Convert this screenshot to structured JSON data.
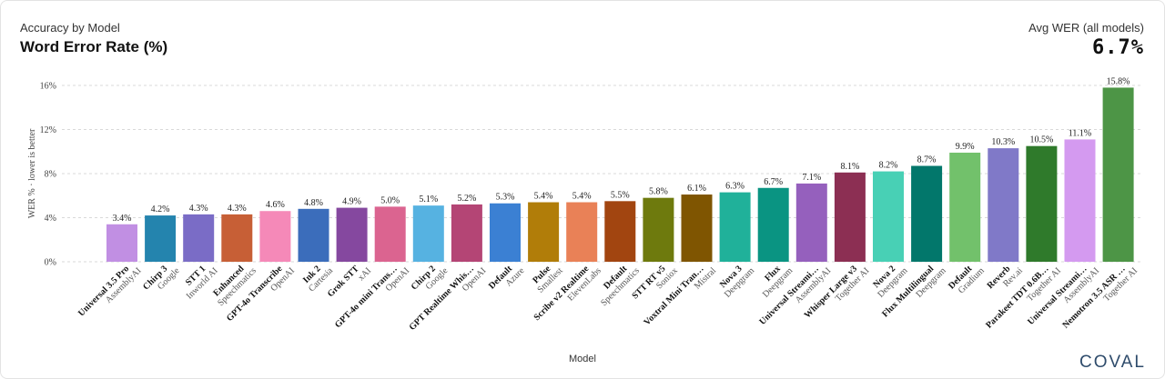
{
  "header": {
    "subtitle": "Accuracy by Model",
    "title": "Word Error Rate (%)",
    "avg_label": "Avg WER (all models)",
    "avg_value": "6.7%"
  },
  "brand": "COVAL",
  "chart_data": {
    "type": "bar",
    "title": "Word Error Rate (%)",
    "xlabel": "Model",
    "ylabel": "WER % · lower is better",
    "ylim": [
      0,
      16
    ],
    "yticks": [
      "0%",
      "4%",
      "8%",
      "12%",
      "16%"
    ],
    "grid": true,
    "bars": [
      {
        "model": "Universal 3.5 Pro",
        "provider": "AssemblyAI",
        "value": 3.4,
        "label": "3.4%",
        "color": "#c18fe3"
      },
      {
        "model": "Chirp 3",
        "provider": "Google",
        "value": 4.2,
        "label": "4.2%",
        "color": "#2484ae"
      },
      {
        "model": "STT 1",
        "provider": "Inworld AI",
        "value": 4.3,
        "label": "4.3%",
        "color": "#7a6cc6"
      },
      {
        "model": "Enhanced",
        "provider": "Speechmatics",
        "value": 4.3,
        "label": "4.3%",
        "color": "#c75f36"
      },
      {
        "model": "GPT-4o Transcribe",
        "provider": "OpenAI",
        "value": 4.6,
        "label": "4.6%",
        "color": "#f589b8"
      },
      {
        "model": "Ink 2",
        "provider": "Cartesia",
        "value": 4.8,
        "label": "4.8%",
        "color": "#3b6dbb"
      },
      {
        "model": "Grok STT",
        "provider": "xAI",
        "value": 4.9,
        "label": "4.9%",
        "color": "#85489f"
      },
      {
        "model": "GPT-4o mini Trans…",
        "provider": "OpenAI",
        "value": 5.0,
        "label": "5.0%",
        "color": "#db6490"
      },
      {
        "model": "Chirp 2",
        "provider": "Google",
        "value": 5.1,
        "label": "5.1%",
        "color": "#56b2e1"
      },
      {
        "model": "GPT Realtime Whis…",
        "provider": "OpenAI",
        "value": 5.2,
        "label": "5.2%",
        "color": "#b44575"
      },
      {
        "model": "Default",
        "provider": "Azure",
        "value": 5.3,
        "label": "5.3%",
        "color": "#3b80d3"
      },
      {
        "model": "Pulse",
        "provider": "Smallest",
        "value": 5.4,
        "label": "5.4%",
        "color": "#b17d09"
      },
      {
        "model": "Scribe v2 Realtime",
        "provider": "ElevenLabs",
        "value": 5.4,
        "label": "5.4%",
        "color": "#e98157"
      },
      {
        "model": "Default",
        "provider": "Speechmatics",
        "value": 5.5,
        "label": "5.5%",
        "color": "#a24510"
      },
      {
        "model": "STT RT v5",
        "provider": "Soniox",
        "value": 5.8,
        "label": "5.8%",
        "color": "#6e7a0d"
      },
      {
        "model": "Voxtral Mini Tran…",
        "provider": "Mistral",
        "value": 6.1,
        "label": "6.1%",
        "color": "#7f5501"
      },
      {
        "model": "Nova 3",
        "provider": "Deepgram",
        "value": 6.3,
        "label": "6.3%",
        "color": "#20b19a"
      },
      {
        "model": "Flux",
        "provider": "Deepgram",
        "value": 6.7,
        "label": "6.7%",
        "color": "#0a9482"
      },
      {
        "model": "Universal Streami…",
        "provider": "AssemblyAI",
        "value": 7.1,
        "label": "7.1%",
        "color": "#9560bd"
      },
      {
        "model": "Whisper Large v3",
        "provider": "Together AI",
        "value": 8.1,
        "label": "8.1%",
        "color": "#8c2f53"
      },
      {
        "model": "Nova 2",
        "provider": "Deepgram",
        "value": 8.2,
        "label": "8.2%",
        "color": "#48d0b5"
      },
      {
        "model": "Flux Multilingual",
        "provider": "Deepgram",
        "value": 8.7,
        "label": "8.7%",
        "color": "#02776b"
      },
      {
        "model": "Default",
        "provider": "Gradium",
        "value": 9.9,
        "label": "9.9%",
        "color": "#72c16b"
      },
      {
        "model": "Reverb",
        "provider": "Rev.ai",
        "value": 10.3,
        "label": "10.3%",
        "color": "#8079c8"
      },
      {
        "model": "Parakeet TDT 0.6B…",
        "provider": "Together AI",
        "value": 10.5,
        "label": "10.5%",
        "color": "#2f7a2b"
      },
      {
        "model": "Universal Streami…",
        "provider": "AssemblyAI",
        "value": 11.1,
        "label": "11.1%",
        "color": "#d49af0"
      },
      {
        "model": "Nemotron 3.5 ASR …",
        "provider": "Together AI",
        "value": 15.8,
        "label": "15.8%",
        "color": "#4d9546"
      }
    ]
  }
}
